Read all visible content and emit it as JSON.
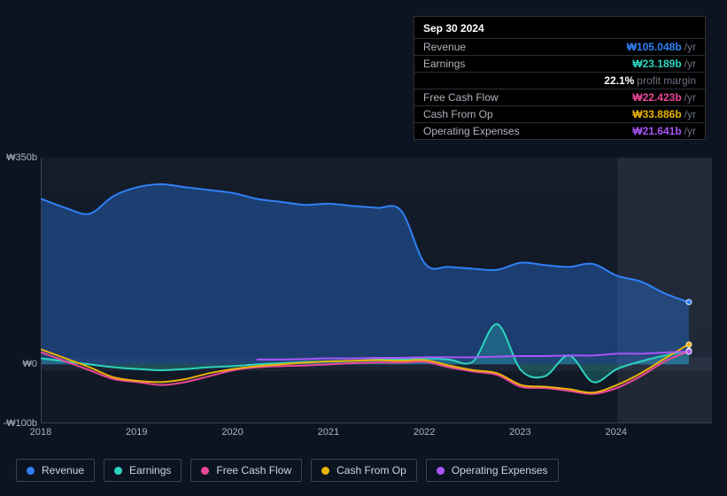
{
  "tooltip": {
    "date": "Sep 30 2024",
    "rows": [
      {
        "label": "Revenue",
        "value": "₩105.048b",
        "unit": "/yr",
        "color": "#2f81f7"
      },
      {
        "label": "Earnings",
        "value": "₩23.189b",
        "unit": "/yr",
        "color": "#2dd4bf"
      },
      {
        "label": "",
        "value": "22.1%",
        "unit": "profit margin",
        "color": "#ffffff"
      },
      {
        "label": "Free Cash Flow",
        "value": "₩22.423b",
        "unit": "/yr",
        "color": "#ec4899"
      },
      {
        "label": "Cash From Op",
        "value": "₩33.886b",
        "unit": "/yr",
        "color": "#eab308"
      },
      {
        "label": "Operating Expenses",
        "value": "₩21.641b",
        "unit": "/yr",
        "color": "#a855f7"
      }
    ]
  },
  "chart": {
    "type": "area-line",
    "background": "#0d1421",
    "plot_background": "rgba(30,40,56,0.35)",
    "border_color": "#3b424e",
    "y_axis": {
      "min": -100,
      "max": 350,
      "ticks": [
        -100,
        0,
        350
      ],
      "labels": [
        "-₩100b",
        "₩0",
        "₩350b"
      ],
      "label_fontsize": 11,
      "label_color": "#aeb4bd"
    },
    "x_axis": {
      "min": 2018,
      "max": 2025,
      "ticks": [
        2018,
        2019,
        2020,
        2021,
        2022,
        2023,
        2024
      ],
      "labels": [
        "2018",
        "2019",
        "2020",
        "2021",
        "2022",
        "2023",
        "2024"
      ],
      "label_fontsize": 11
    },
    "x_dates": [
      2018.0,
      2018.25,
      2018.5,
      2018.75,
      2019.0,
      2019.25,
      2019.5,
      2019.75,
      2020.0,
      2020.25,
      2020.5,
      2020.75,
      2021.0,
      2021.25,
      2021.5,
      2021.75,
      2022.0,
      2022.25,
      2022.5,
      2022.75,
      2023.0,
      2023.25,
      2023.5,
      2023.75,
      2024.0,
      2024.25,
      2024.5,
      2024.75
    ],
    "series": [
      {
        "name": "Revenue",
        "color": "#2f81f7",
        "fill": true,
        "fill_opacity": 0.35,
        "line_width": 2,
        "values": [
          280,
          265,
          255,
          285,
          300,
          305,
          300,
          295,
          290,
          280,
          275,
          270,
          272,
          268,
          265,
          260,
          170,
          165,
          162,
          160,
          172,
          168,
          165,
          170,
          150,
          140,
          120,
          105
        ]
      },
      {
        "name": "Earnings",
        "color": "#2dd4bf",
        "fill": true,
        "fill_opacity": 0.25,
        "line_width": 2,
        "values": [
          10,
          5,
          0,
          -5,
          -8,
          -10,
          -8,
          -5,
          -3,
          0,
          2,
          4,
          5,
          6,
          8,
          8,
          10,
          8,
          5,
          68,
          -10,
          -20,
          15,
          -30,
          -8,
          5,
          15,
          23
        ]
      },
      {
        "name": "Free Cash Flow",
        "color": "#ec4899",
        "fill": false,
        "line_width": 2,
        "values": [
          20,
          5,
          -10,
          -25,
          -30,
          -35,
          -30,
          -20,
          -10,
          -5,
          -3,
          -2,
          0,
          2,
          3,
          3,
          4,
          -5,
          -12,
          -18,
          -38,
          -40,
          -45,
          -50,
          -40,
          -20,
          5,
          22
        ]
      },
      {
        "name": "Cash From Op",
        "color": "#eab308",
        "fill": false,
        "line_width": 2,
        "values": [
          25,
          10,
          -5,
          -22,
          -28,
          -30,
          -25,
          -15,
          -8,
          -3,
          0,
          3,
          5,
          6,
          7,
          6,
          7,
          -2,
          -10,
          -15,
          -35,
          -38,
          -42,
          -48,
          -35,
          -15,
          10,
          34
        ]
      },
      {
        "name": "Operating Expenses",
        "color": "#a855f7",
        "fill": false,
        "line_width": 2,
        "values": [
          null,
          null,
          null,
          null,
          null,
          null,
          null,
          null,
          null,
          8,
          8,
          9,
          10,
          10,
          11,
          11,
          12,
          12,
          12,
          13,
          14,
          14,
          15,
          15,
          18,
          18,
          20,
          22
        ]
      }
    ],
    "current_x": 2024.75,
    "forecast_shade": {
      "from": 2024.0,
      "color": "rgba(120,130,150,0.15)"
    }
  },
  "legend": [
    {
      "label": "Revenue",
      "color": "#2f81f7"
    },
    {
      "label": "Earnings",
      "color": "#2dd4bf"
    },
    {
      "label": "Free Cash Flow",
      "color": "#ec4899"
    },
    {
      "label": "Cash From Op",
      "color": "#eab308"
    },
    {
      "label": "Operating Expenses",
      "color": "#a855f7"
    }
  ]
}
